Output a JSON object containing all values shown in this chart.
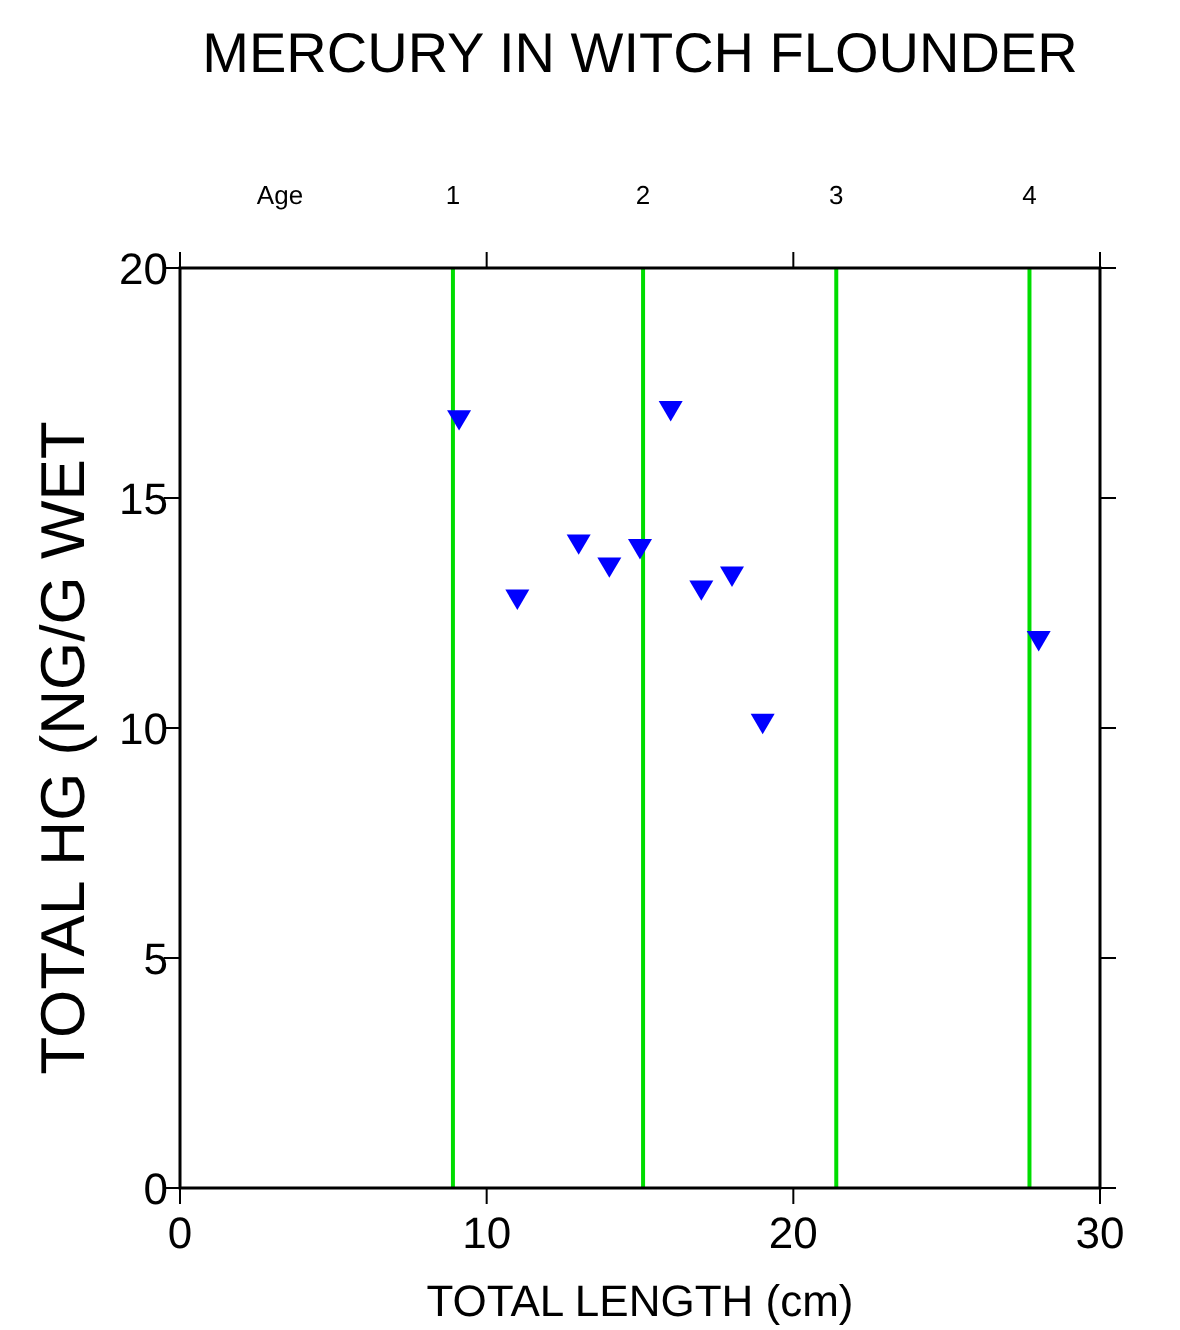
{
  "chart_data": {
    "type": "scatter",
    "title": "MERCURY IN WITCH FLOUNDER",
    "xlabel": "TOTAL LENGTH (cm)",
    "ylabel": "TOTAL HG (NG/G  WET",
    "x": [
      9.1,
      11,
      13,
      14,
      15,
      16,
      17,
      18,
      19,
      28
    ],
    "values": [
      16.7,
      12.8,
      14.0,
      13.5,
      13.9,
      16.9,
      13.0,
      13.3,
      10.1,
      11.9
    ],
    "color": "#0000ff",
    "marker": "triangle",
    "xlim": [
      0,
      30
    ],
    "xticks": [
      0,
      10,
      20,
      30
    ],
    "ylim": [
      0,
      20
    ],
    "yticks": [
      0,
      5,
      10,
      15,
      20
    ],
    "grid": false,
    "annotations": [
      "Age",
      "1",
      "2",
      "3",
      "4"
    ],
    "ref_lines": [
      {
        "axis": "x",
        "value": 8.9,
        "color": "#00dd00"
      },
      {
        "axis": "x",
        "value": 15.1,
        "color": "#00dd00"
      },
      {
        "axis": "x",
        "value": 21.4,
        "color": "#00dd00"
      },
      {
        "axis": "x",
        "value": 27.7,
        "color": "#00dd00"
      }
    ]
  }
}
